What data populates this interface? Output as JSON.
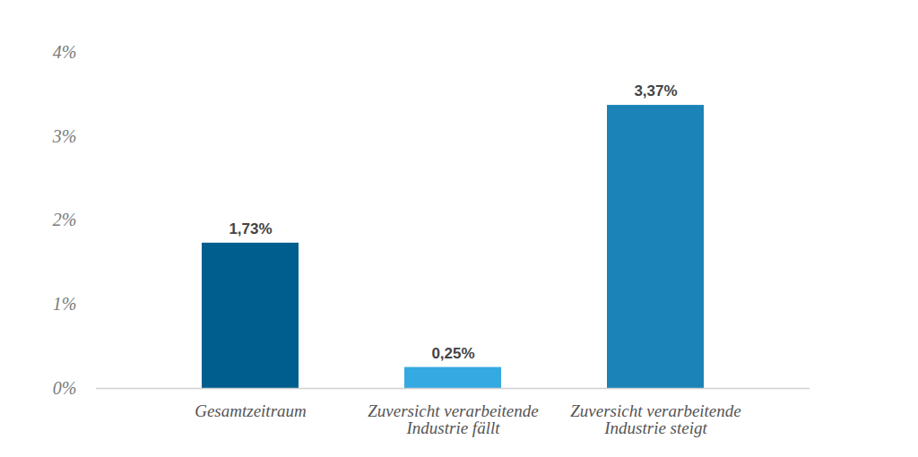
{
  "chart_data": {
    "type": "bar",
    "categories": [
      "Gesamtzeitraum",
      "Zuversicht verarbeitende\nIndustrie fällt",
      "Zuversicht verarbeitende\nIndustrie steigt"
    ],
    "values": [
      1.73,
      0.25,
      3.37
    ],
    "value_labels": [
      "1,73%",
      "0,25%",
      "3,37%"
    ],
    "colors": [
      "#005e8f",
      "#35a9e1",
      "#1b83b8"
    ],
    "ylim": [
      0,
      4
    ],
    "yticks": [
      {
        "value": 0,
        "label": "0%"
      },
      {
        "value": 1,
        "label": "1%"
      },
      {
        "value": 2,
        "label": "2%"
      },
      {
        "value": 3,
        "label": "3%"
      },
      {
        "value": 4,
        "label": "4%"
      }
    ],
    "grid": false,
    "data_labels": true
  }
}
